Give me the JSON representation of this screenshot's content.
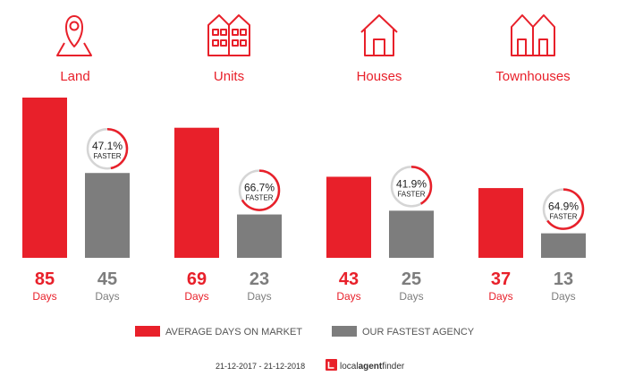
{
  "colors": {
    "accent": "#e8202a",
    "grey": "#7d7d7d",
    "ring_track": "#d5d5d5",
    "text_dark": "#333333"
  },
  "chart_data": {
    "type": "bar",
    "categories": [
      "Land",
      "Units",
      "Houses",
      "Townhouses"
    ],
    "category_icons": [
      "map-pin-icon",
      "units-building-icon",
      "house-icon",
      "townhouses-icon"
    ],
    "series": [
      {
        "name": "AVERAGE DAYS ON MARKET",
        "values": [
          85,
          69,
          43,
          37
        ]
      },
      {
        "name": "OUR FASTEST AGENCY",
        "values": [
          45,
          23,
          25,
          13
        ]
      }
    ],
    "value_unit": "Days",
    "faster_percent": [
      "47.1%",
      "66.7%",
      "41.9%",
      "64.9%"
    ],
    "faster_label": "FASTER",
    "ylim": [
      0,
      85
    ],
    "legend_position": "bottom"
  },
  "footer": {
    "date_range": "21-12-2017 - 21-12-2018",
    "brand_part1": "local",
    "brand_part2": "agent",
    "brand_part3": "finder"
  }
}
